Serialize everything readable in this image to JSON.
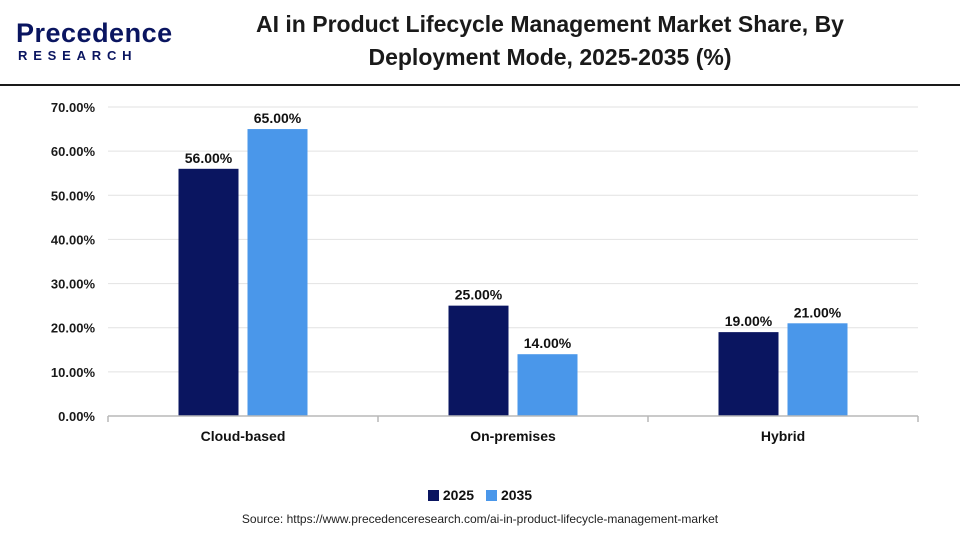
{
  "brand": {
    "name": "Precedence",
    "sub": "RESEARCH"
  },
  "title": "AI in Product Lifecycle Management Market Share, By Deployment Mode, 2025-2035 (%)",
  "chart_data": {
    "type": "bar",
    "categories": [
      "Cloud-based",
      "On-premises",
      "Hybrid"
    ],
    "series": [
      {
        "name": "2025",
        "values": [
          56.0,
          25.0,
          19.0
        ],
        "color": "#0a1560"
      },
      {
        "name": "2035",
        "values": [
          65.0,
          14.0,
          21.0
        ],
        "color": "#4a97ea"
      }
    ],
    "value_labels": [
      [
        "56.00%",
        "25.00%",
        "19.00%"
      ],
      [
        "65.00%",
        "14.00%",
        "21.00%"
      ]
    ],
    "ylim": [
      0,
      70
    ],
    "yticks": [
      "0.00%",
      "10.00%",
      "20.00%",
      "30.00%",
      "40.00%",
      "50.00%",
      "60.00%",
      "70.00%"
    ],
    "grid": true,
    "legend": "bottom-center"
  },
  "source": "Source: https://www.precedenceresearch.com/ai-in-product-lifecycle-management-market"
}
